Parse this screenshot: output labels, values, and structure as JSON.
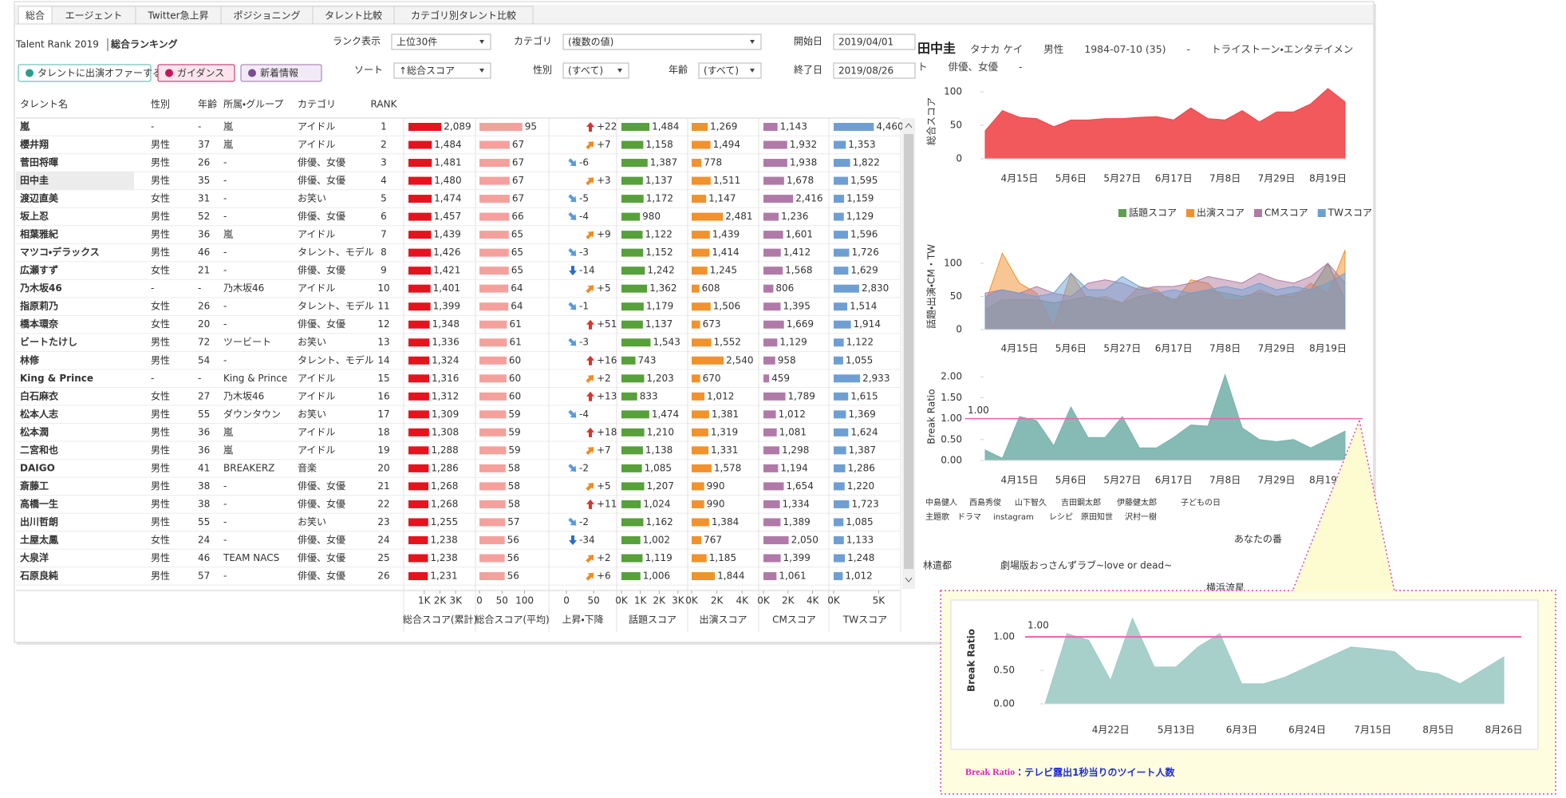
{
  "tabs": [
    "総合",
    "エージェント",
    "Twitter急上昇",
    "ポジショニング",
    "タレント比較",
    "カテゴリ別タレント比較"
  ],
  "header": {
    "brand": "Talent Rank 2019",
    "title": "総合ランキング"
  },
  "buttons": [
    "タレントに出演オファーする",
    "ガイダンス",
    "新着情報"
  ],
  "filters": [
    {
      "label": "ランク表示",
      "value": "上位30件"
    },
    {
      "label": "カテゴリ",
      "value": "(複数の値)"
    },
    {
      "label": "開始日",
      "value": "2019/04/01"
    },
    {
      "label": "ソート",
      "value": "↑総合スコア"
    },
    {
      "label": "性別",
      "value": "(すべて)"
    },
    {
      "label": "年齢",
      "value": "(すべて)"
    },
    {
      "label": "終了日",
      "value": "2019/08/26"
    }
  ],
  "ranking_table": {
    "columns": [
      "タレント名",
      "性別",
      "年齢",
      "所属・グループ",
      "カテゴリ",
      "RANK"
    ],
    "rows": [
      [
        "嵐",
        "-",
        "-",
        "嵐",
        "アイドル",
        1
      ],
      [
        "櫻井翔",
        "男性",
        37,
        "嵐",
        "アイドル",
        2
      ],
      [
        "菅田将暉",
        "男性",
        26,
        "-",
        "俳優、女優",
        3
      ],
      [
        "田中圭",
        "男性",
        35,
        "-",
        "俳優、女優",
        4
      ],
      [
        "渡辺直美",
        "女性",
        31,
        "-",
        "お笑い",
        5
      ],
      [
        "坂上忍",
        "男性",
        52,
        "-",
        "俳優、女優",
        6
      ],
      [
        "相葉雅紀",
        "男性",
        36,
        "嵐",
        "アイドル",
        7
      ],
      [
        "マツコ・デラックス",
        "男性",
        46,
        "-",
        "タレント、モデル",
        8
      ],
      [
        "広瀬すず",
        "女性",
        21,
        "-",
        "俳優、女優",
        9
      ],
      [
        "乃木坂46",
        "-",
        "-",
        "乃木坂46",
        "アイドル",
        10
      ],
      [
        "指原莉乃",
        "女性",
        26,
        "-",
        "タレント、モデル",
        11
      ],
      [
        "橋本環奈",
        "女性",
        20,
        "-",
        "俳優、女優",
        12
      ],
      [
        "ビートたけし",
        "男性",
        72,
        "ツービート",
        "お笑い",
        13
      ],
      [
        "林修",
        "男性",
        54,
        "-",
        "タレント、モデル",
        14
      ],
      [
        "King & Prince",
        "-",
        "-",
        "King & Prince",
        "アイドル",
        15
      ],
      [
        "白石麻衣",
        "女性",
        27,
        "乃木坂46",
        "アイドル",
        16
      ],
      [
        "松本人志",
        "男性",
        55,
        "ダウンタウン",
        "お笑い",
        17
      ],
      [
        "松本潤",
        "男性",
        36,
        "嵐",
        "アイドル",
        18
      ],
      [
        "二宮和也",
        "男性",
        36,
        "嵐",
        "アイドル",
        19
      ],
      [
        "DAIGO",
        "男性",
        41,
        "BREAKERZ",
        "音楽",
        20
      ],
      [
        "斎藤工",
        "男性",
        38,
        "-",
        "俳優、女優",
        21
      ],
      [
        "高橋一生",
        "男性",
        38,
        "-",
        "俳優、女優",
        22
      ],
      [
        "出川哲朗",
        "男性",
        55,
        "-",
        "お笑い",
        23
      ],
      [
        "土屋太鳳",
        "女性",
        24,
        "-",
        "俳優、女優",
        24
      ],
      [
        "大泉洋",
        "男性",
        46,
        "TEAM NACS",
        "俳優、女優",
        25
      ],
      [
        "石原良純",
        "男性",
        57,
        "-",
        "俳優、女優",
        26
      ]
    ]
  },
  "score_columns": [
    {
      "type": "bar",
      "name": "総合スコア(累計)",
      "color": "#e5131d",
      "values": [
        2089,
        1484,
        1481,
        1480,
        1474,
        1457,
        1439,
        1426,
        1421,
        1401,
        1399,
        1348,
        1336,
        1324,
        1316,
        1312,
        1309,
        1308,
        1288,
        1286,
        1268,
        1268,
        1255,
        1238,
        1238,
        1231
      ],
      "value_labels": [
        "2,089",
        "1,484",
        "1,481",
        "1,480",
        "1,474",
        "1,457",
        "1,439",
        "1,426",
        "1,421",
        "1,401",
        "1,399",
        "1,348",
        "1,336",
        "1,324",
        "1,316",
        "1,312",
        "1,309",
        "1,308",
        "1,288",
        "1,286",
        "1,268",
        "1,268",
        "1,255",
        "1,238",
        "1,238",
        "1,231"
      ],
      "xlim": [
        0,
        4000
      ],
      "xticks": [
        {
          "value": 1000,
          "label": "1K"
        },
        {
          "value": 2000,
          "label": "2K"
        },
        {
          "value": 3000,
          "label": "3K"
        }
      ]
    },
    {
      "type": "bar",
      "name": "総合スコア(平均)",
      "color": "#f4a19d",
      "values": [
        95,
        67,
        67,
        67,
        67,
        66,
        65,
        65,
        65,
        64,
        64,
        61,
        61,
        60,
        60,
        60,
        59,
        59,
        59,
        58,
        58,
        58,
        57,
        56,
        56,
        56
      ],
      "xlim": [
        0,
        145
      ],
      "xticks": [
        0,
        50,
        100
      ]
    },
    {
      "type": "change",
      "name": "上昇・下降",
      "values": [
        22,
        7,
        -6,
        3,
        -5,
        -4,
        9,
        -3,
        -14,
        5,
        -1,
        51,
        -3,
        16,
        2,
        13,
        -4,
        18,
        7,
        -2,
        5,
        11,
        -2,
        -34,
        2,
        6
      ],
      "value_labels": [
        "+22",
        "+7",
        "-6",
        "+3",
        "-5",
        "-4",
        "+9",
        "-3",
        "-14",
        "+5",
        "-1",
        "+51",
        "-3",
        "+16",
        "+2",
        "+13",
        "-4",
        "+18",
        "+7",
        "-2",
        "+5",
        "+11",
        "-2",
        "-34",
        "+2",
        "+6"
      ],
      "xlim": [
        -25,
        85
      ],
      "xticks": [
        0,
        50
      ]
    },
    {
      "type": "bar",
      "name": "話題スコア",
      "color": "#57a03b",
      "values": [
        1484,
        1158,
        1387,
        1137,
        1172,
        980,
        1122,
        1152,
        1242,
        1362,
        1179,
        1137,
        1543,
        743,
        1203,
        833,
        1474,
        1210,
        1138,
        1085,
        1207,
        1024,
        1162,
        1002,
        1119,
        1006
      ],
      "value_labels": [
        "1,484",
        "1,158",
        "1,387",
        "1,137",
        "1,172",
        "980",
        "1,122",
        "1,152",
        "1,242",
        "1,362",
        "1,179",
        "1,137",
        "1,543",
        "743",
        "1,203",
        "833",
        "1,474",
        "1,210",
        "1,138",
        "1,085",
        "1,207",
        "1,024",
        "1,162",
        "1,002",
        "1,119",
        "1,006"
      ],
      "xlim": [
        0,
        3300
      ],
      "xticks": [
        {
          "value": 0,
          "label": "0K"
        },
        {
          "value": 1000,
          "label": "1K"
        },
        {
          "value": 2000,
          "label": "2K"
        },
        {
          "value": 3000,
          "label": "3K"
        }
      ]
    },
    {
      "type": "bar",
      "name": "出演スコア",
      "color": "#f0922d",
      "values": [
        1269,
        1494,
        778,
        1511,
        1147,
        2481,
        1439,
        1414,
        1245,
        608,
        1506,
        673,
        1552,
        2540,
        670,
        1012,
        1381,
        1319,
        1331,
        1578,
        990,
        990,
        1384,
        767,
        1185,
        1844
      ],
      "value_labels": [
        "1,269",
        "1,494",
        "778",
        "1,511",
        "1,147",
        "2,481",
        "1,439",
        "1,414",
        "1,245",
        "608",
        "1,506",
        "673",
        "1,552",
        "2,540",
        "670",
        "1,012",
        "1,381",
        "1,319",
        "1,331",
        "1,578",
        "990",
        "990",
        "1,384",
        "767",
        "1,185",
        "1,844"
      ],
      "xlim": [
        0,
        5000
      ],
      "xticks": [
        {
          "value": 0,
          "label": "0K"
        },
        {
          "value": 2000,
          "label": "2K"
        },
        {
          "value": 4000,
          "label": "4K"
        }
      ]
    },
    {
      "type": "bar",
      "name": "CMスコア",
      "color": "#b07aa8",
      "values": [
        1143,
        1932,
        1938,
        1678,
        2416,
        1236,
        1601,
        1412,
        1568,
        806,
        1395,
        1669,
        1129,
        958,
        459,
        1789,
        1012,
        1081,
        1298,
        1194,
        1654,
        1334,
        1389,
        2050,
        1399,
        1061
      ],
      "value_labels": [
        "1,143",
        "1,932",
        "1,938",
        "1,678",
        "2,416",
        "1,236",
        "1,601",
        "1,412",
        "1,568",
        "806",
        "1,395",
        "1,669",
        "1,129",
        "958",
        "459",
        "1,789",
        "1,012",
        "1,081",
        "1,298",
        "1,194",
        "1,654",
        "1,334",
        "1,389",
        "2,050",
        "1,399",
        "1,061"
      ],
      "xlim": [
        0,
        5000
      ],
      "xticks": [
        {
          "value": 0,
          "label": "0K"
        },
        {
          "value": 2000,
          "label": "2K"
        },
        {
          "value": 4000,
          "label": "4K"
        }
      ]
    },
    {
      "type": "bar",
      "name": "TWスコア",
      "color": "#6f9fd2",
      "values": [
        4460,
        1353,
        1822,
        1595,
        1159,
        1129,
        1596,
        1726,
        1629,
        2830,
        1514,
        1914,
        1122,
        1055,
        2933,
        1615,
        1369,
        1624,
        1387,
        1286,
        1220,
        1723,
        1085,
        1133,
        1248,
        1012
      ],
      "value_labels": [
        "4,460",
        "1,353",
        "1,822",
        "1,595",
        "1,159",
        "1,129",
        "1,596",
        "1,726",
        "1,629",
        "2,830",
        "1,514",
        "1,914",
        "1,122",
        "1,055",
        "2,933",
        "1,615",
        "1,369",
        "1,624",
        "1,387",
        "1,286",
        "1,220",
        "1,723",
        "1,085",
        "1,133",
        "1,248",
        "1,012"
      ],
      "xlim": [
        0,
        7000
      ],
      "xticks": [
        {
          "value": 0,
          "label": "0K"
        },
        {
          "value": 5000,
          "label": "5K"
        }
      ]
    }
  ],
  "profile": {
    "name": "田中圭",
    "kana": "タナカ ケイ",
    "gender": "男性",
    "birth": "1984-07-10 (35)",
    "group": "-",
    "agency": "トライストーン・エンタテイメント",
    "category": "俳優、女優",
    "note": "-"
  },
  "chart_data": [
    {
      "type": "area",
      "y_label": "総合スコア",
      "categories": [
        null,
        null,
        "4月15日",
        null,
        null,
        "5月6日",
        null,
        null,
        "5月27日",
        null,
        null,
        "6月17日",
        null,
        null,
        "7月8日",
        null,
        null,
        "7月29日",
        null,
        null,
        "8月19日",
        null
      ],
      "values": [
        42,
        72,
        62,
        60,
        48,
        58,
        58,
        60,
        60,
        62,
        63,
        58,
        76,
        60,
        58,
        72,
        55,
        70,
        70,
        82,
        105,
        85
      ],
      "color": "#f0474a",
      "ylim": [
        0,
        112
      ],
      "yticks": [
        0,
        50,
        100
      ]
    },
    {
      "type": "area",
      "y_label": "話題・出演・CM・TW",
      "categories": [
        null,
        null,
        "4月15日",
        null,
        null,
        "5月6日",
        null,
        null,
        "5月27日",
        null,
        null,
        "6月17日",
        null,
        null,
        "7月8日",
        null,
        null,
        "7月29日",
        null,
        null,
        "8月19日",
        null
      ],
      "series": [
        {
          "name": "話題スコア",
          "color": "#59a14f",
          "values": [
            30,
            45,
            45,
            45,
            40,
            45,
            50,
            45,
            40,
            50,
            55,
            45,
            55,
            60,
            55,
            50,
            55,
            50,
            55,
            60,
            100,
            45
          ]
        },
        {
          "name": "出演スコア",
          "color": "#f28e2b",
          "values": [
            40,
            115,
            70,
            55,
            5,
            85,
            45,
            50,
            40,
            65,
            60,
            40,
            75,
            70,
            45,
            45,
            60,
            50,
            50,
            70,
            55,
            120
          ]
        },
        {
          "name": "CMスコア",
          "color": "#b07aa1",
          "values": [
            55,
            60,
            55,
            65,
            55,
            50,
            70,
            75,
            70,
            60,
            65,
            65,
            70,
            80,
            75,
            70,
            85,
            75,
            70,
            80,
            100,
            70
          ]
        },
        {
          "name": "TWスコア",
          "color": "#6f9fd2",
          "values": [
            50,
            60,
            55,
            50,
            55,
            85,
            60,
            60,
            80,
            65,
            55,
            60,
            55,
            60,
            65,
            60,
            70,
            60,
            65,
            60,
            70,
            85
          ]
        }
      ],
      "ylim": [
        0,
        130
      ],
      "yticks": [
        0,
        50,
        100
      ]
    },
    {
      "type": "area",
      "y_label": "Break Ratio",
      "categories": [
        null,
        null,
        "4月15日",
        null,
        null,
        "5月6日",
        null,
        null,
        "5月27日",
        null,
        null,
        "6月17日",
        null,
        null,
        "7月8日",
        null,
        null,
        "7月29日",
        null,
        null,
        "8月19日",
        null
      ],
      "values": [
        0.25,
        0.05,
        1.05,
        0.95,
        0.35,
        1.28,
        0.55,
        0.55,
        1.05,
        0.3,
        0.3,
        0.55,
        0.85,
        0.82,
        2.05,
        0.78,
        0.5,
        0.45,
        0.5,
        0.3,
        0.5,
        0.7
      ],
      "color": "#79b3ac",
      "ylim": [
        0,
        2.1
      ],
      "yticks": [
        {
          "value": 0,
          "label": "0.00"
        },
        {
          "value": 0.5,
          "label": "0.50"
        },
        {
          "value": 1,
          "label": "1.00"
        },
        {
          "value": 1.5,
          "label": "1.50"
        },
        {
          "value": 2,
          "label": "2.00"
        }
      ],
      "reference_line": {
        "value": 1,
        "label": "1.00",
        "color": "#ee5fb0"
      }
    },
    {
      "type": "area",
      "y_label": "Break Ratio",
      "categories": [
        null,
        null,
        null,
        "4月22日",
        null,
        null,
        "5月13日",
        null,
        null,
        "6月3日",
        null,
        null,
        "6月24日",
        null,
        null,
        "7月15日",
        null,
        null,
        "8月5日",
        null,
        null,
        "8月26日"
      ],
      "values": [
        0,
        1.05,
        0.95,
        0.35,
        1.28,
        0.55,
        0.55,
        0.85,
        1.05,
        0.3,
        0.3,
        0.4,
        0.55,
        0.7,
        0.85,
        0.82,
        0.78,
        0.5,
        0.45,
        0.3,
        0.5,
        0.7
      ],
      "color": "#9fcbc5",
      "ylim": [
        0,
        1.3
      ],
      "yticks": [
        {
          "value": 0,
          "label": "0.00"
        },
        {
          "value": 0.5,
          "label": "0.50"
        },
        {
          "value": 1,
          "label": "1.00"
        }
      ],
      "reference_line": {
        "value": 1,
        "label": "1.00",
        "color": "#ee5fb0"
      }
    }
  ],
  "wordcloud": [
    "あなたの番",
    "劇場版おっさんずラブ~love or dead~",
    "林遣都",
    "横浜流星",
    "中島健人",
    "西島秀俊",
    "山下智久",
    "instagram",
    "レシピ",
    "原田知世",
    "吉田鋼太郎",
    "伊藤健太郎",
    "主題歌",
    "ドラマ",
    "沢村一樹",
    "子どもの日"
  ],
  "caption": {
    "term": "Break Ratio",
    "text": "：テレビ露出1秒当りのツイート人数"
  }
}
